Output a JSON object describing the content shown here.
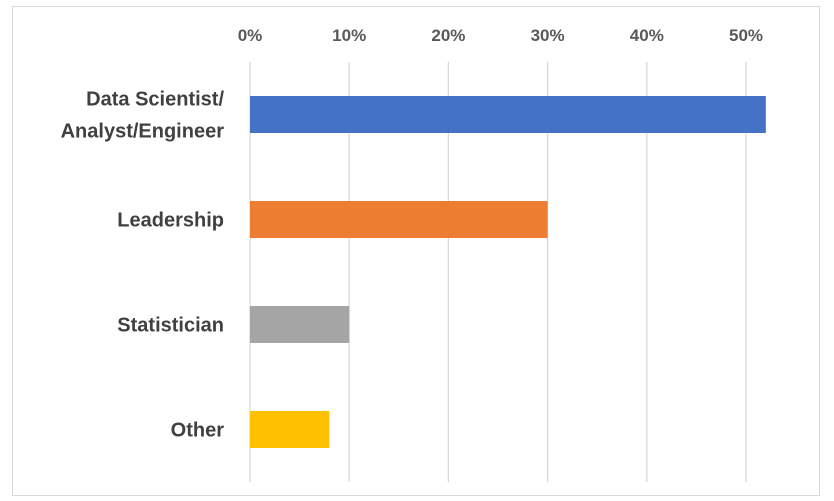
{
  "chart_data": {
    "type": "bar",
    "orientation": "horizontal",
    "categories": [
      [
        "Data Scientist/",
        "Analyst/Engineer"
      ],
      [
        "Leadership"
      ],
      [
        "Statistician"
      ],
      [
        "Other"
      ]
    ],
    "values": [
      52,
      30,
      10,
      8
    ],
    "colors": [
      "#4472c4",
      "#ed7d31",
      "#a5a5a5",
      "#ffc000"
    ],
    "x_ticks": [
      0,
      10,
      20,
      30,
      40,
      50
    ],
    "x_tick_labels": [
      "0%",
      "10%",
      "20%",
      "30%",
      "40%",
      "50%"
    ],
    "xlim": [
      0,
      57
    ],
    "x_axis_position": "top",
    "grid": true,
    "legend": "none",
    "title": "",
    "xlabel": "",
    "ylabel": ""
  }
}
